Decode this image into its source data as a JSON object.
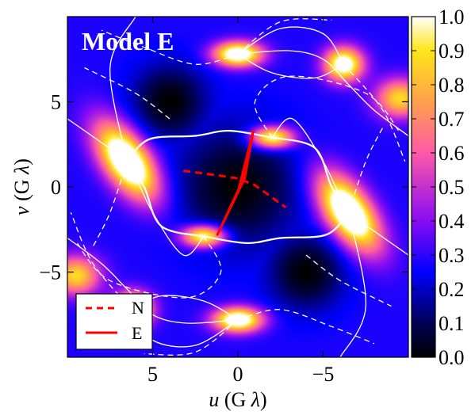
{
  "chart_data": {
    "type": "heatmap",
    "title": "Model E",
    "xlabel": "u (G λ)",
    "ylabel": "v (G λ)",
    "xlabel_parts": {
      "var": "u",
      "mid": " (G ",
      "sym": "λ",
      "end": ")"
    },
    "ylabel_parts": {
      "var": "v",
      "mid": " (G ",
      "sym": "λ",
      "end": ")"
    },
    "xlim": [
      10,
      -10
    ],
    "ylim": [
      -10,
      10
    ],
    "x_ticks": [
      5,
      0,
      -5
    ],
    "x_tick_labels": [
      "5",
      "0",
      "−5"
    ],
    "y_ticks": [
      5,
      0,
      -5
    ],
    "y_tick_labels": [
      "5",
      "0",
      "−5"
    ],
    "colorbar": {
      "range": [
        0,
        1
      ],
      "ticks": [
        0.0,
        0.1,
        0.2,
        0.3,
        0.4,
        0.5,
        0.6,
        0.7,
        0.8,
        0.9,
        1.0
      ],
      "tick_labels": [
        "0.0",
        "0.1",
        "0.2",
        "0.3",
        "0.4",
        "0.5",
        "0.6",
        "0.7",
        "0.8",
        "0.9",
        "1.0"
      ],
      "colormap": "gnuplot2"
    },
    "colormap_stops": [
      {
        "v": 0.0,
        "color": "#000000"
      },
      {
        "v": 0.1,
        "color": "#000055"
      },
      {
        "v": 0.25,
        "color": "#0000ff"
      },
      {
        "v": 0.4,
        "color": "#8a0cf3"
      },
      {
        "v": 0.5,
        "color": "#c332cd"
      },
      {
        "v": 0.6,
        "color": "#ff5aa6"
      },
      {
        "v": 0.75,
        "color": "#ffa04c"
      },
      {
        "v": 0.9,
        "color": "#ffe619"
      },
      {
        "v": 1.0,
        "color": "#ffffff"
      }
    ],
    "hotspots": [
      {
        "u": 6.5,
        "v": 1.5,
        "amp": 1.0,
        "sx": 0.9,
        "sy": 1.8,
        "rot": -35
      },
      {
        "u": -6.5,
        "v": -1.5,
        "amp": 1.0,
        "sx": 0.9,
        "sy": 1.8,
        "rot": -35
      },
      {
        "u": 0.0,
        "v": 7.8,
        "amp": 0.9,
        "sx": 1.0,
        "sy": 0.5,
        "rot": 0
      },
      {
        "u": -6.2,
        "v": 7.2,
        "amp": 0.85,
        "sx": 0.8,
        "sy": 0.7,
        "rot": 0
      },
      {
        "u": 0.0,
        "v": -7.8,
        "amp": 0.9,
        "sx": 1.0,
        "sy": 0.5,
        "rot": 0
      },
      {
        "u": 6.2,
        "v": -7.2,
        "amp": 0.85,
        "sx": 0.8,
        "sy": 0.7,
        "rot": 0
      },
      {
        "u": -2.0,
        "v": 2.9,
        "amp": 0.8,
        "sx": 0.9,
        "sy": 0.45,
        "rot": 0
      },
      {
        "u": 2.0,
        "v": -2.9,
        "amp": 0.8,
        "sx": 0.9,
        "sy": 0.45,
        "rot": 0
      },
      {
        "u": -9.5,
        "v": 5.2,
        "amp": 0.6,
        "sx": 1.0,
        "sy": 0.8,
        "rot": 0
      },
      {
        "u": 9.5,
        "v": -5.2,
        "amp": 0.6,
        "sx": 1.0,
        "sy": 0.8,
        "rot": 0
      }
    ],
    "background_level": 0.28,
    "dark_centers": [
      {
        "u": 0.0,
        "v": 0.0,
        "s": 3.6
      },
      {
        "u": 4.0,
        "v": 5.0,
        "s": 2.2
      },
      {
        "u": -4.0,
        "v": -5.0,
        "s": 2.2
      }
    ],
    "contours_solid": [
      [
        [
          6.5,
          1.5
        ],
        [
          5.2,
          2.8
        ],
        [
          2.5,
          3.0
        ],
        [
          0.5,
          3.3
        ],
        [
          -2.0,
          2.9
        ]
      ],
      [
        [
          -6.5,
          -1.5
        ],
        [
          -5.2,
          -2.8
        ],
        [
          -2.5,
          -3.0
        ],
        [
          -0.5,
          -3.3
        ],
        [
          2.0,
          -2.9
        ]
      ],
      [
        [
          -2.0,
          2.9
        ],
        [
          -4.5,
          2.3
        ],
        [
          -5.5,
          0.0
        ],
        [
          -6.5,
          -1.5
        ]
      ],
      [
        [
          2.0,
          -2.9
        ],
        [
          4.5,
          -2.3
        ],
        [
          5.5,
          0.0
        ],
        [
          6.5,
          1.5
        ]
      ],
      [
        [
          0.0,
          7.8
        ],
        [
          -2.5,
          9.3
        ],
        [
          -5.0,
          9.0
        ],
        [
          -6.2,
          7.2
        ]
      ],
      [
        [
          0.0,
          7.8
        ],
        [
          -2.0,
          6.7
        ],
        [
          -4.5,
          6.4
        ],
        [
          -6.2,
          7.2
        ]
      ],
      [
        [
          0.0,
          -7.8
        ],
        [
          2.5,
          -9.3
        ],
        [
          5.0,
          -9.0
        ],
        [
          6.2,
          -7.2
        ]
      ],
      [
        [
          0.0,
          -7.8
        ],
        [
          2.0,
          -6.7
        ],
        [
          4.5,
          -6.4
        ],
        [
          6.2,
          -7.2
        ]
      ],
      [
        [
          10.0,
          4.0
        ],
        [
          8.0,
          2.6
        ],
        [
          6.5,
          1.5
        ],
        [
          5.0,
          -1.5
        ],
        [
          3.2,
          -4.0
        ],
        [
          2.0,
          -2.9
        ]
      ],
      [
        [
          -10.0,
          -4.0
        ],
        [
          -8.0,
          -2.6
        ],
        [
          -6.5,
          -1.5
        ],
        [
          -5.0,
          1.5
        ],
        [
          -3.2,
          4.0
        ],
        [
          -2.0,
          2.9
        ]
      ],
      [
        [
          10.0,
          -3.0
        ],
        [
          8.0,
          -4.5
        ],
        [
          6.5,
          -6.0
        ],
        [
          5.0,
          -7.5
        ],
        [
          3.0,
          -8.0
        ],
        [
          0.0,
          -7.8
        ]
      ],
      [
        [
          -10.0,
          3.0
        ],
        [
          -8.0,
          4.5
        ],
        [
          -6.5,
          6.0
        ],
        [
          -5.0,
          7.5
        ],
        [
          -3.0,
          8.0
        ],
        [
          0.0,
          7.8
        ]
      ],
      [
        [
          6.0,
          10.0
        ],
        [
          7.5,
          7.0
        ],
        [
          6.5,
          1.5
        ]
      ],
      [
        [
          -6.0,
          -10.0
        ],
        [
          -7.5,
          -7.0
        ],
        [
          -6.5,
          -1.5
        ]
      ]
    ],
    "contours_dashed": [
      [
        [
          -2.0,
          2.9
        ],
        [
          -1.0,
          5.0
        ],
        [
          -3.0,
          6.5
        ],
        [
          -7.5,
          5.5
        ],
        [
          -9.5,
          3.2
        ]
      ],
      [
        [
          2.0,
          -2.9
        ],
        [
          1.0,
          -5.0
        ],
        [
          3.0,
          -6.5
        ],
        [
          7.5,
          -5.5
        ],
        [
          9.5,
          -3.2
        ]
      ],
      [
        [
          0.0,
          7.8
        ],
        [
          2.5,
          7.2
        ],
        [
          5.5,
          8.2
        ],
        [
          8.0,
          9.2
        ]
      ],
      [
        [
          0.0,
          -7.8
        ],
        [
          -2.5,
          -7.2
        ],
        [
          -5.5,
          -8.2
        ],
        [
          -8.0,
          -9.2
        ]
      ],
      [
        [
          6.5,
          1.5
        ],
        [
          7.5,
          -1.5
        ],
        [
          8.5,
          -3.5
        ]
      ],
      [
        [
          -6.5,
          -1.5
        ],
        [
          -7.5,
          1.5
        ],
        [
          -8.5,
          3.5
        ]
      ],
      [
        [
          0.0,
          7.8
        ],
        [
          -2.5,
          9.7
        ],
        [
          -5.5,
          9.8
        ]
      ],
      [
        [
          0.0,
          -7.8
        ],
        [
          2.5,
          -9.7
        ],
        [
          5.5,
          -9.8
        ]
      ],
      [
        [
          -6.2,
          7.2
        ],
        [
          -8.5,
          4.5
        ],
        [
          -9.8,
          1.5
        ]
      ],
      [
        [
          6.2,
          -7.2
        ],
        [
          8.5,
          -4.5
        ],
        [
          9.8,
          -1.5
        ]
      ],
      [
        [
          -4.0,
          -4.0
        ],
        [
          -6.0,
          -5.5
        ],
        [
          -9.0,
          -7.0
        ]
      ],
      [
        [
          4.0,
          4.0
        ],
        [
          6.0,
          5.5
        ],
        [
          9.0,
          7.0
        ]
      ]
    ],
    "series": [
      {
        "name": "N",
        "style": "dashed",
        "color": "#ff0000",
        "points": [
          [
            3.2,
            0.95
          ],
          [
            1.0,
            0.65
          ],
          [
            0.0,
            0.5
          ],
          [
            -1.0,
            0.1
          ],
          [
            -2.8,
            -1.2
          ]
        ]
      },
      {
        "name": "E",
        "style": "solid",
        "color": "#ff0000",
        "points": [
          [
            1.2,
            -2.8
          ],
          [
            -0.4,
            0.5
          ],
          [
            -0.9,
            3.3
          ],
          [
            -0.2,
            0.2
          ],
          [
            1.2,
            -2.8
          ],
          [
            0.0,
            -0.3
          ],
          [
            -0.9,
            3.3
          ]
        ]
      }
    ],
    "legend": {
      "placement": "lower-left"
    }
  }
}
